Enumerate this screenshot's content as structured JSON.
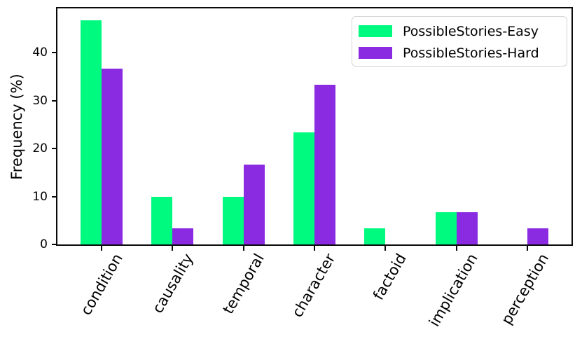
{
  "chart_data": {
    "type": "bar",
    "title": "",
    "xlabel": "",
    "ylabel": "Frequency (%)",
    "categories": [
      "condition",
      "causality",
      "temporal",
      "character",
      "factoid",
      "implication",
      "perception"
    ],
    "series": [
      {
        "name": "PossibleStories-Easy",
        "color": "#00FA7F",
        "values": [
          46.7,
          10.0,
          10.0,
          23.3,
          3.3,
          6.7,
          0.0
        ]
      },
      {
        "name": "PossibleStories-Hard",
        "color": "#8A2BE2",
        "values": [
          36.7,
          3.3,
          16.7,
          33.3,
          0.0,
          6.7,
          3.3
        ]
      }
    ],
    "yticks": [
      0,
      10,
      20,
      30,
      40
    ],
    "ylim": [
      0,
      49.2
    ],
    "xtick_rotation_deg": 60,
    "grid": false,
    "legend_position": "upper right",
    "axis_color": "#0a0a0a",
    "background_color": "#ffffff"
  }
}
